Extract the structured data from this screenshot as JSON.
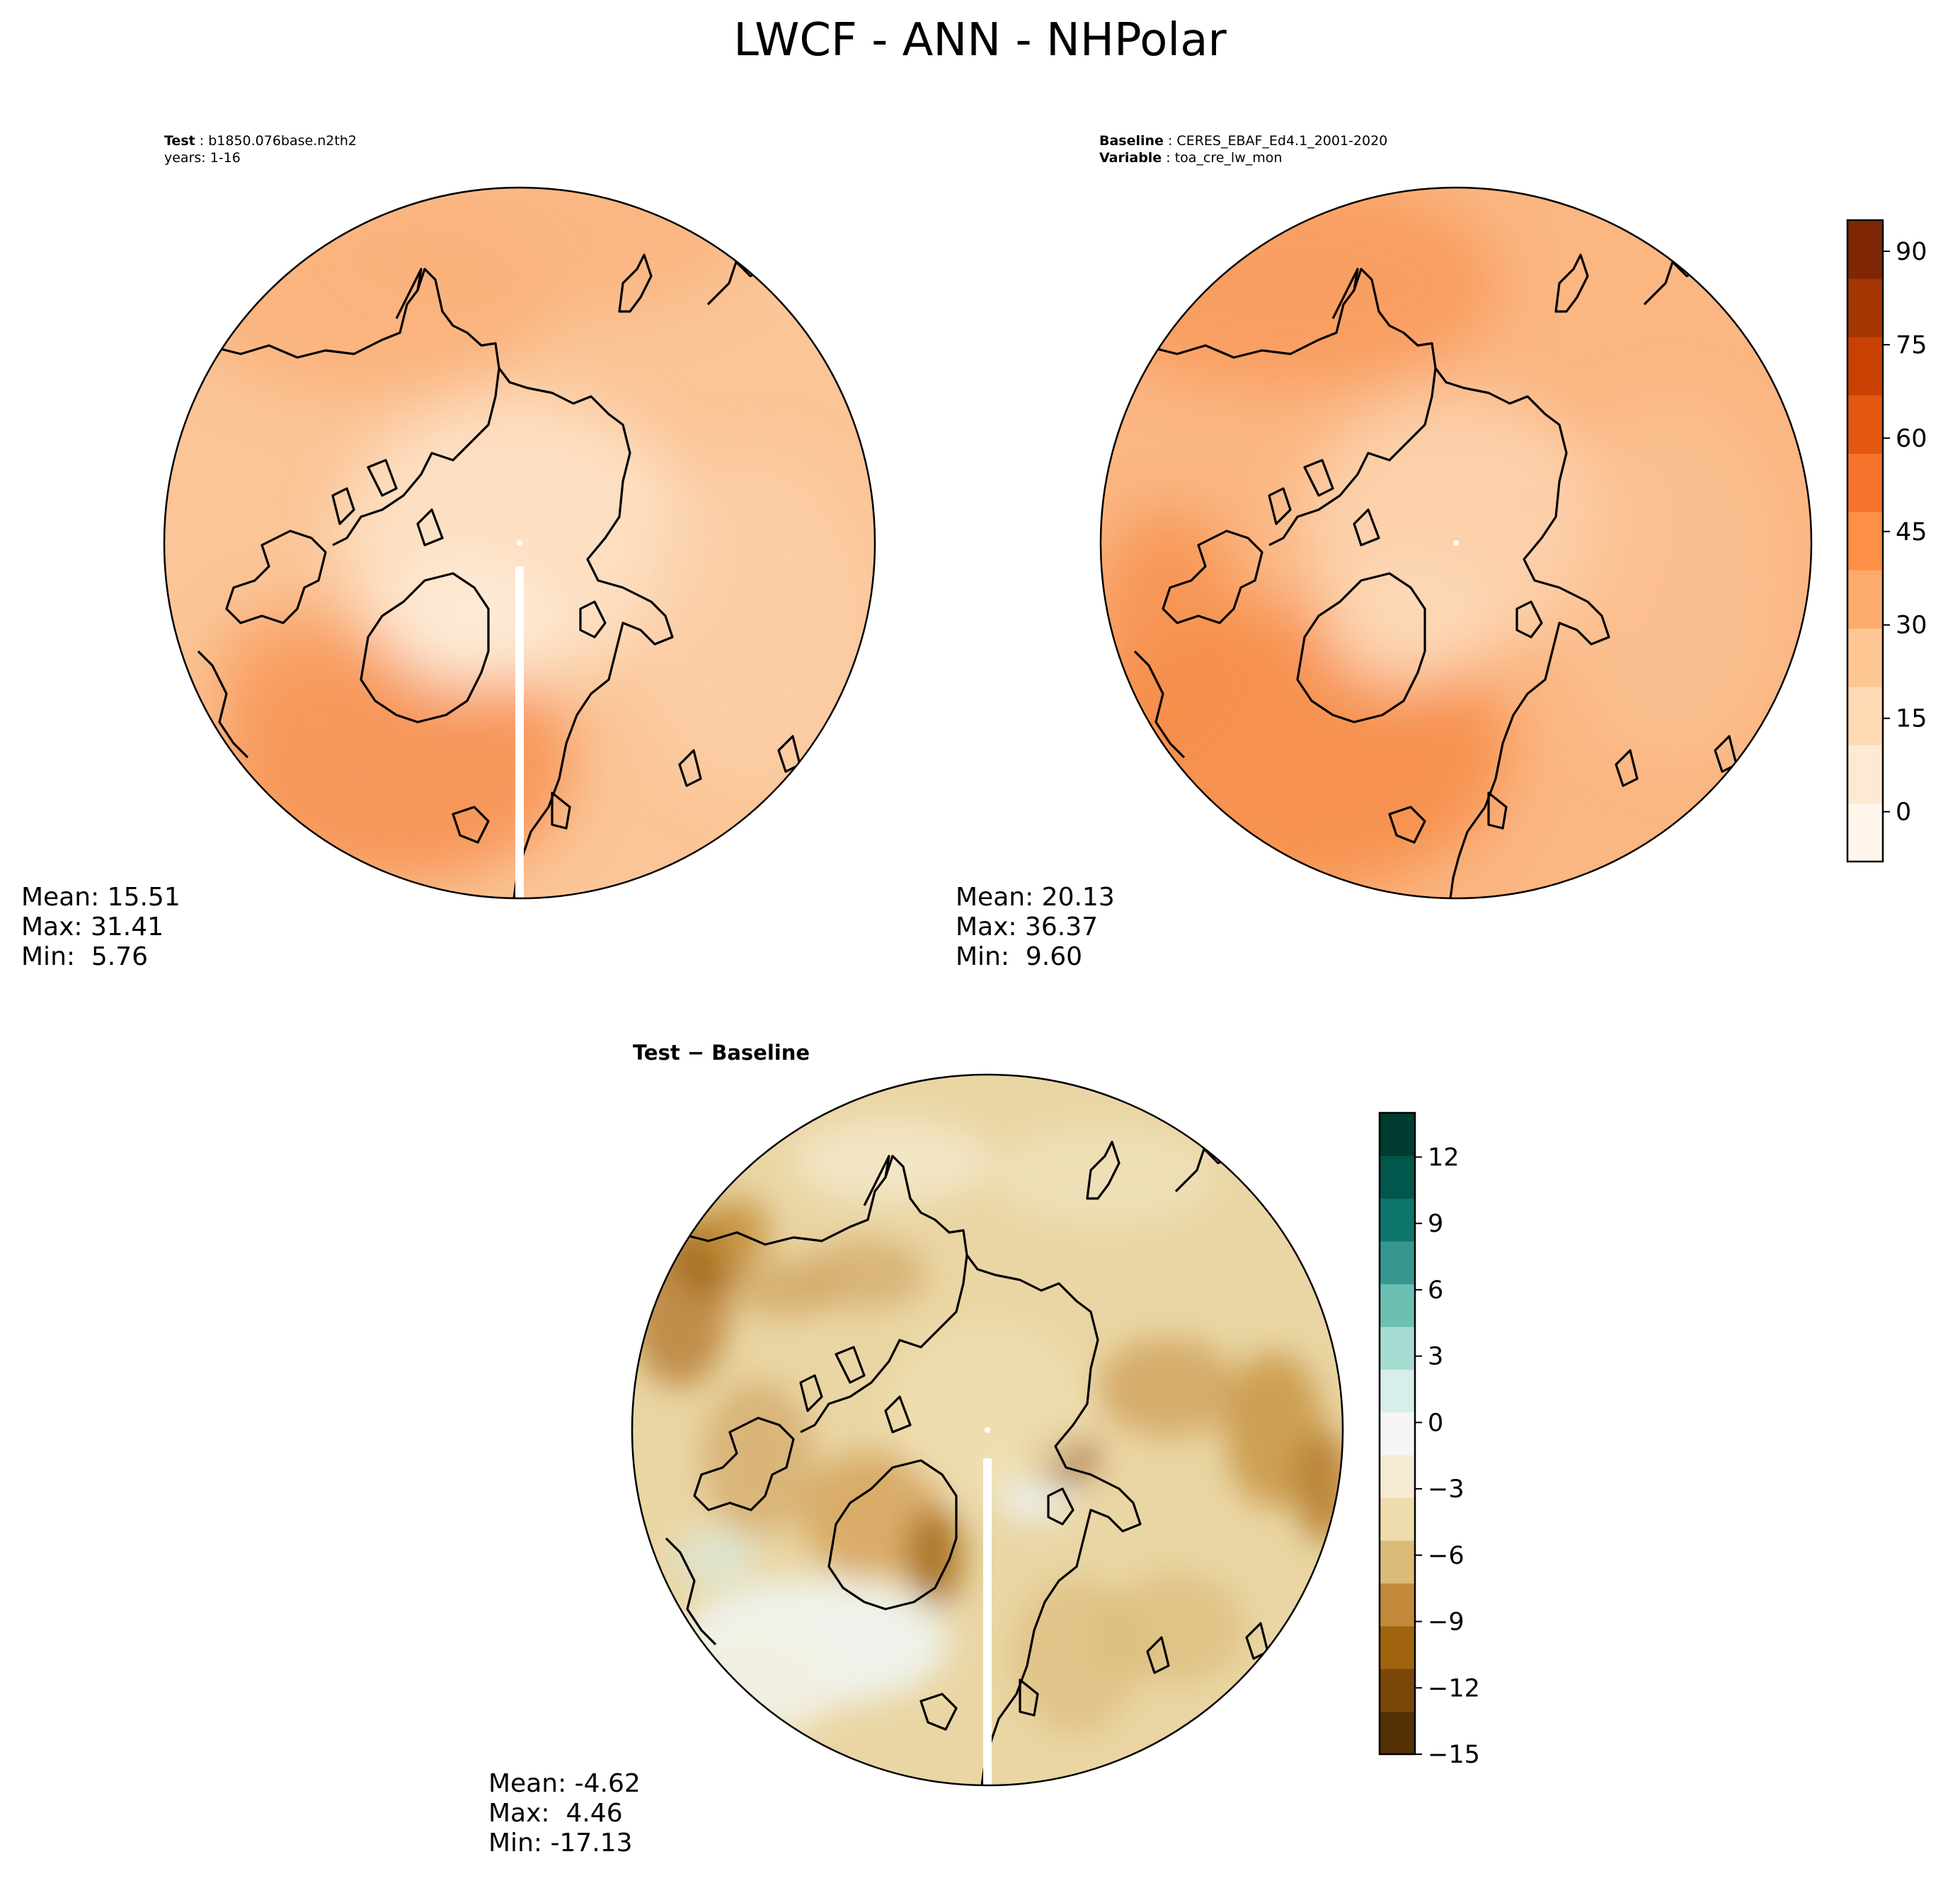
{
  "title": "LWCF - ANN - NHPolar",
  "panels": {
    "test": {
      "header_line1_label": "Test",
      "header_line1_value": "b1850.076base.n2th2",
      "header_line2": "years: 1-16",
      "stats": [
        "Mean: 15.51",
        "Max: 31.41",
        "Min:  5.76"
      ]
    },
    "baseline": {
      "header_line1_label": "Baseline",
      "header_line1_value": "CERES_EBAF_Ed4.1_2001-2020",
      "header_line2_label": "Variable",
      "header_line2_value": "toa_cre_lw_mon",
      "stats": [
        "Mean: 20.13",
        "Max: 36.37",
        "Min:  9.60"
      ]
    },
    "diff": {
      "header_label": "Test − Baseline",
      "stats": [
        "Mean: -4.62",
        "Max:  4.46",
        "Min: -17.13"
      ]
    }
  },
  "colorbars": {
    "main": {
      "colormap": "Oranges",
      "range": [
        -8,
        95
      ],
      "ticks": [
        0,
        15,
        30,
        45,
        60,
        75,
        90
      ],
      "tick_labels": [
        "0",
        "15",
        "30",
        "45",
        "60",
        "75",
        "90"
      ],
      "colors_low_to_high": [
        "#fff5eb",
        "#fee9d3",
        "#fdd9b4",
        "#fdc692",
        "#fdab6c",
        "#fd8f47",
        "#f5732b",
        "#e55812",
        "#c94103",
        "#a33603",
        "#7f2704"
      ]
    },
    "diff": {
      "colormap": "BrBG",
      "range": [
        -15,
        14
      ],
      "ticks": [
        -15,
        -12,
        -9,
        -6,
        -3,
        0,
        3,
        6,
        9,
        12
      ],
      "tick_labels": [
        "−15",
        "−12",
        "−9",
        "−6",
        "−3",
        "0",
        "3",
        "6",
        "9",
        "12"
      ],
      "colors_low_to_high": [
        "#543005",
        "#7a4709",
        "#a0640f",
        "#c38a3b",
        "#dbbb77",
        "#eedcac",
        "#f5ebd2",
        "#f5f5f5",
        "#d7eeeb",
        "#a7dcd3",
        "#6cbfb3",
        "#35978f",
        "#0f766e",
        "#01574b",
        "#003c30"
      ]
    }
  },
  "chart_data": [
    {
      "type": "heatmap",
      "title": "Test",
      "colorbar_range": [
        -8,
        95
      ],
      "summary": {
        "mean": 15.51,
        "max": 31.41,
        "min": 5.76
      }
    },
    {
      "type": "heatmap",
      "title": "Baseline",
      "colorbar_range": [
        -8,
        95
      ],
      "summary": {
        "mean": 20.13,
        "max": 36.37,
        "min": 9.6
      }
    },
    {
      "type": "heatmap",
      "title": "Test − Baseline",
      "colorbar_range": [
        -15,
        14
      ],
      "summary": {
        "mean": -4.62,
        "max": 4.46,
        "min": -17.13
      }
    }
  ]
}
